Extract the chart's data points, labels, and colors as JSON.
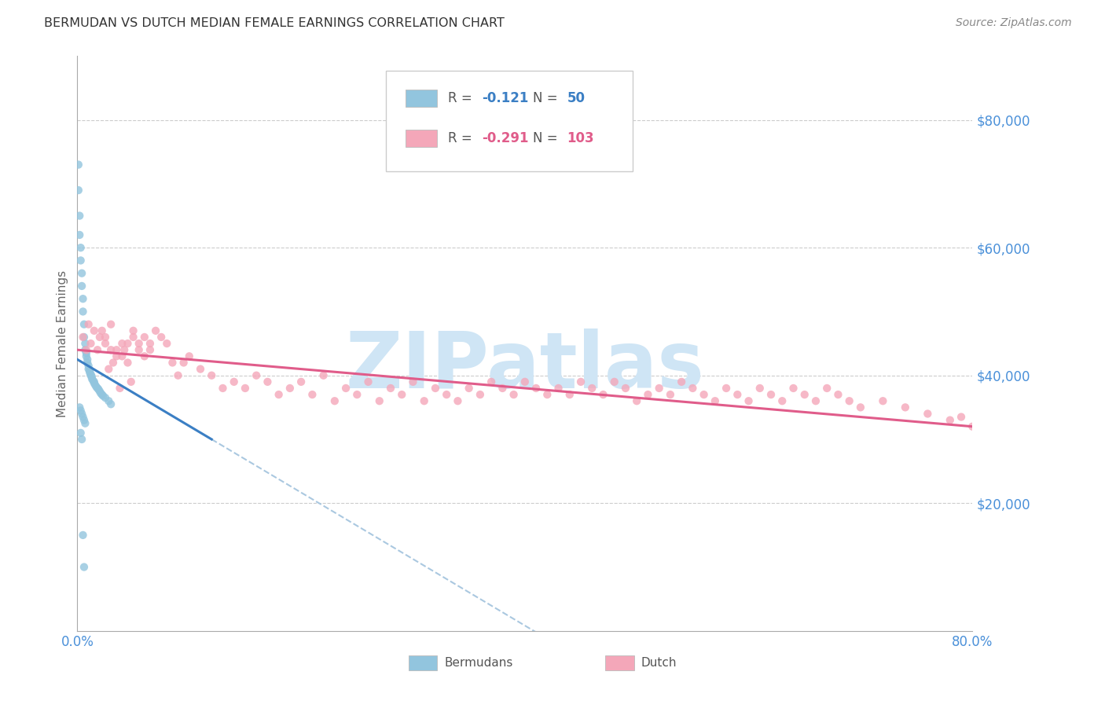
{
  "title": "BERMUDAN VS DUTCH MEDIAN FEMALE EARNINGS CORRELATION CHART",
  "source": "Source: ZipAtlas.com",
  "ylabel": "Median Female Earnings",
  "yticklabels": [
    "$20,000",
    "$40,000",
    "$60,000",
    "$80,000"
  ],
  "ytick_values": [
    20000,
    40000,
    60000,
    80000
  ],
  "ymin": 0,
  "ymax": 90000,
  "xmin": 0.0,
  "xmax": 0.8,
  "R_bermudan": -0.121,
  "N_bermudan": 50,
  "R_dutch": -0.291,
  "N_dutch": 103,
  "bermudan_color": "#92c5de",
  "dutch_color": "#f4a7b9",
  "bermudan_trend_color": "#3b7fc4",
  "dutch_trend_color": "#e05c8a",
  "dashed_line_color": "#aac8e0",
  "title_color": "#333333",
  "axis_label_color": "#4a90d9",
  "ytick_color": "#4a90d9",
  "background_color": "#ffffff",
  "grid_color": "#cccccc",
  "watermark_text": "ZIPatlas",
  "watermark_color": "#cfe5f5",
  "bermudan_x": [
    0.001,
    0.001,
    0.002,
    0.002,
    0.003,
    0.003,
    0.004,
    0.004,
    0.005,
    0.005,
    0.006,
    0.006,
    0.007,
    0.007,
    0.008,
    0.008,
    0.009,
    0.009,
    0.01,
    0.01,
    0.011,
    0.011,
    0.012,
    0.012,
    0.013,
    0.013,
    0.014,
    0.015,
    0.015,
    0.016,
    0.017,
    0.018,
    0.019,
    0.02,
    0.021,
    0.022,
    0.023,
    0.025,
    0.028,
    0.03,
    0.002,
    0.003,
    0.004,
    0.005,
    0.006,
    0.007,
    0.003,
    0.004,
    0.005,
    0.006
  ],
  "bermudan_y": [
    73000,
    69000,
    65000,
    62000,
    60000,
    58000,
    56000,
    54000,
    52000,
    50000,
    48000,
    46000,
    45000,
    44000,
    43500,
    43000,
    42500,
    42000,
    41500,
    41000,
    40800,
    40500,
    40200,
    40000,
    39800,
    39500,
    39200,
    39000,
    38800,
    38500,
    38200,
    38000,
    37800,
    37500,
    37200,
    37000,
    36800,
    36500,
    36000,
    35500,
    35000,
    34500,
    34000,
    33500,
    33000,
    32500,
    31000,
    30000,
    15000,
    10000
  ],
  "dutch_x": [
    0.005,
    0.008,
    0.01,
    0.012,
    0.015,
    0.018,
    0.02,
    0.022,
    0.025,
    0.028,
    0.03,
    0.032,
    0.035,
    0.038,
    0.04,
    0.042,
    0.045,
    0.048,
    0.05,
    0.055,
    0.06,
    0.065,
    0.07,
    0.075,
    0.08,
    0.085,
    0.09,
    0.095,
    0.1,
    0.11,
    0.12,
    0.13,
    0.14,
    0.15,
    0.16,
    0.17,
    0.18,
    0.19,
    0.2,
    0.21,
    0.22,
    0.23,
    0.24,
    0.25,
    0.26,
    0.27,
    0.28,
    0.29,
    0.3,
    0.31,
    0.32,
    0.33,
    0.34,
    0.35,
    0.36,
    0.37,
    0.38,
    0.39,
    0.4,
    0.41,
    0.42,
    0.43,
    0.44,
    0.45,
    0.46,
    0.47,
    0.48,
    0.49,
    0.5,
    0.51,
    0.52,
    0.53,
    0.54,
    0.55,
    0.56,
    0.57,
    0.58,
    0.59,
    0.6,
    0.61,
    0.62,
    0.63,
    0.64,
    0.65,
    0.66,
    0.67,
    0.68,
    0.69,
    0.7,
    0.72,
    0.74,
    0.76,
    0.78,
    0.79,
    0.8,
    0.025,
    0.03,
    0.035,
    0.04,
    0.045,
    0.05,
    0.055,
    0.06,
    0.065
  ],
  "dutch_y": [
    46000,
    44000,
    48000,
    45000,
    47000,
    44000,
    46000,
    47000,
    45000,
    41000,
    44000,
    42000,
    43000,
    38000,
    45000,
    44000,
    42000,
    39000,
    47000,
    45000,
    46000,
    44000,
    47000,
    46000,
    45000,
    42000,
    40000,
    42000,
    43000,
    41000,
    40000,
    38000,
    39000,
    38000,
    40000,
    39000,
    37000,
    38000,
    39000,
    37000,
    40000,
    36000,
    38000,
    37000,
    39000,
    36000,
    38000,
    37000,
    39000,
    36000,
    38000,
    37000,
    36000,
    38000,
    37000,
    39000,
    38000,
    37000,
    39000,
    38000,
    37000,
    38000,
    37000,
    39000,
    38000,
    37000,
    39000,
    38000,
    36000,
    37000,
    38000,
    37000,
    39000,
    38000,
    37000,
    36000,
    38000,
    37000,
    36000,
    38000,
    37000,
    36000,
    38000,
    37000,
    36000,
    38000,
    37000,
    36000,
    35000,
    36000,
    35000,
    34000,
    33000,
    33500,
    32000,
    46000,
    48000,
    44000,
    43000,
    45000,
    46000,
    44000,
    43000,
    45000
  ]
}
